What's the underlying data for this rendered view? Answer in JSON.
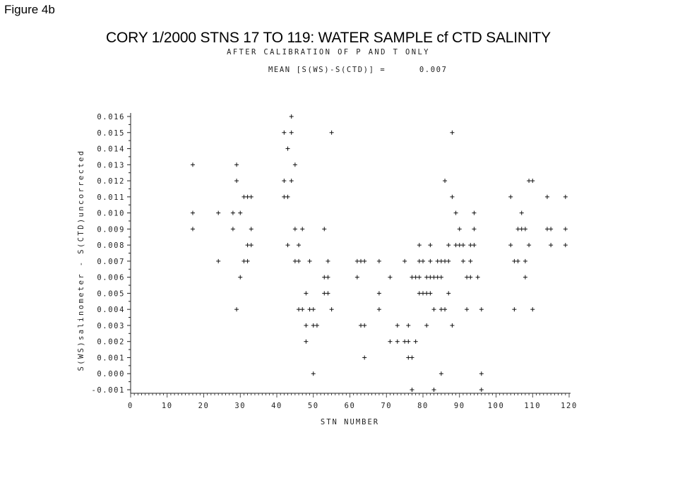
{
  "figure_label": "Figure 4b",
  "mean_label": "MEAN [S(WS)-S(CTD)] =",
  "mean_value": "0.007",
  "chart_data": {
    "type": "scatter",
    "title": "CORY 1/2000   STNS 17 TO 119: WATER SAMPLE cf CTD SALINITY",
    "subtitle": "AFTER CALIBRATION OF P AND T ONLY",
    "xlabel": "STN NUMBER",
    "ylabel": "S(WS)salinometer - S(CTD)uncorrected",
    "xlim": [
      0,
      120
    ],
    "ylim": [
      -0.001,
      0.016
    ],
    "xticks": [
      0,
      10,
      20,
      30,
      40,
      50,
      60,
      70,
      80,
      90,
      100,
      110,
      120
    ],
    "yticks": [
      -0.001,
      0.0,
      0.001,
      0.002,
      0.003,
      0.004,
      0.005,
      0.006,
      0.007,
      0.008,
      0.009,
      0.01,
      0.011,
      0.012,
      0.013,
      0.014,
      0.015,
      0.016
    ],
    "ytick_labels": [
      "-0.001",
      "0.000",
      "0.001",
      "0.002",
      "0.003",
      "0.004",
      "0.005",
      "0.006",
      "0.007",
      "0.008",
      "0.009",
      "0.010",
      "0.011",
      "0.012",
      "0.013",
      "0.014",
      "0.015",
      "0.016"
    ],
    "marker": "+",
    "grid": false,
    "points": [
      [
        17,
        0.013
      ],
      [
        17,
        0.01
      ],
      [
        17,
        0.009
      ],
      [
        24,
        0.01
      ],
      [
        24,
        0.007
      ],
      [
        28,
        0.01
      ],
      [
        28,
        0.009
      ],
      [
        29,
        0.013
      ],
      [
        29,
        0.012
      ],
      [
        29,
        0.004
      ],
      [
        30,
        0.01
      ],
      [
        30,
        0.006
      ],
      [
        31,
        0.011
      ],
      [
        31,
        0.007
      ],
      [
        32,
        0.011
      ],
      [
        32,
        0.008
      ],
      [
        32,
        0.007
      ],
      [
        33,
        0.011
      ],
      [
        33,
        0.009
      ],
      [
        33,
        0.008
      ],
      [
        42,
        0.015
      ],
      [
        42,
        0.012
      ],
      [
        42,
        0.011
      ],
      [
        43,
        0.014
      ],
      [
        43,
        0.011
      ],
      [
        43,
        0.008
      ],
      [
        44,
        0.016
      ],
      [
        44,
        0.015
      ],
      [
        44,
        0.012
      ],
      [
        45,
        0.013
      ],
      [
        45,
        0.009
      ],
      [
        45,
        0.007
      ],
      [
        46,
        0.008
      ],
      [
        46,
        0.007
      ],
      [
        46,
        0.004
      ],
      [
        47,
        0.009
      ],
      [
        47,
        0.004
      ],
      [
        48,
        0.005
      ],
      [
        48,
        0.003
      ],
      [
        48,
        0.002
      ],
      [
        49,
        0.007
      ],
      [
        49,
        0.004
      ],
      [
        50,
        0.004
      ],
      [
        50,
        0.003
      ],
      [
        50,
        0.0
      ],
      [
        51,
        0.003
      ],
      [
        53,
        0.009
      ],
      [
        53,
        0.006
      ],
      [
        53,
        0.005
      ],
      [
        54,
        0.007
      ],
      [
        54,
        0.006
      ],
      [
        54,
        0.005
      ],
      [
        55,
        0.015
      ],
      [
        55,
        0.004
      ],
      [
        62,
        0.007
      ],
      [
        62,
        0.006
      ],
      [
        63,
        0.007
      ],
      [
        63,
        0.003
      ],
      [
        64,
        0.007
      ],
      [
        64,
        0.003
      ],
      [
        64,
        0.001
      ],
      [
        68,
        0.007
      ],
      [
        68,
        0.005
      ],
      [
        68,
        0.004
      ],
      [
        71,
        0.006
      ],
      [
        71,
        0.002
      ],
      [
        73,
        0.003
      ],
      [
        73,
        0.002
      ],
      [
        75,
        0.007
      ],
      [
        75,
        0.002
      ],
      [
        76,
        0.003
      ],
      [
        76,
        0.002
      ],
      [
        76,
        0.001
      ],
      [
        77,
        0.006
      ],
      [
        77,
        0.001
      ],
      [
        77,
        -0.001
      ],
      [
        78,
        0.006
      ],
      [
        78,
        0.002
      ],
      [
        79,
        0.008
      ],
      [
        79,
        0.007
      ],
      [
        79,
        0.006
      ],
      [
        79,
        0.005
      ],
      [
        80,
        0.007
      ],
      [
        80,
        0.005
      ],
      [
        81,
        0.006
      ],
      [
        81,
        0.005
      ],
      [
        81,
        0.003
      ],
      [
        82,
        0.008
      ],
      [
        82,
        0.007
      ],
      [
        82,
        0.006
      ],
      [
        82,
        0.005
      ],
      [
        83,
        0.006
      ],
      [
        83,
        0.004
      ],
      [
        83,
        -0.001
      ],
      [
        84,
        0.007
      ],
      [
        84,
        0.006
      ],
      [
        85,
        0.007
      ],
      [
        85,
        0.006
      ],
      [
        85,
        0.004
      ],
      [
        85,
        0.0
      ],
      [
        86,
        0.012
      ],
      [
        86,
        0.007
      ],
      [
        86,
        0.004
      ],
      [
        87,
        0.008
      ],
      [
        87,
        0.007
      ],
      [
        87,
        0.005
      ],
      [
        88,
        0.015
      ],
      [
        88,
        0.011
      ],
      [
        88,
        0.003
      ],
      [
        89,
        0.01
      ],
      [
        89,
        0.008
      ],
      [
        90,
        0.009
      ],
      [
        90,
        0.008
      ],
      [
        91,
        0.008
      ],
      [
        91,
        0.007
      ],
      [
        92,
        0.006
      ],
      [
        92,
        0.004
      ],
      [
        93,
        0.008
      ],
      [
        93,
        0.007
      ],
      [
        93,
        0.006
      ],
      [
        94,
        0.01
      ],
      [
        94,
        0.009
      ],
      [
        94,
        0.008
      ],
      [
        95,
        0.006
      ],
      [
        96,
        0.004
      ],
      [
        96,
        0.0
      ],
      [
        96,
        -0.001
      ],
      [
        104,
        0.011
      ],
      [
        104,
        0.008
      ],
      [
        105,
        0.007
      ],
      [
        105,
        0.004
      ],
      [
        106,
        0.009
      ],
      [
        106,
        0.007
      ],
      [
        107,
        0.01
      ],
      [
        107,
        0.009
      ],
      [
        108,
        0.009
      ],
      [
        108,
        0.007
      ],
      [
        108,
        0.006
      ],
      [
        109,
        0.012
      ],
      [
        109,
        0.008
      ],
      [
        110,
        0.012
      ],
      [
        110,
        0.004
      ],
      [
        114,
        0.011
      ],
      [
        114,
        0.009
      ],
      [
        115,
        0.009
      ],
      [
        115,
        0.008
      ],
      [
        119,
        0.011
      ],
      [
        119,
        0.009
      ],
      [
        119,
        0.008
      ]
    ]
  }
}
